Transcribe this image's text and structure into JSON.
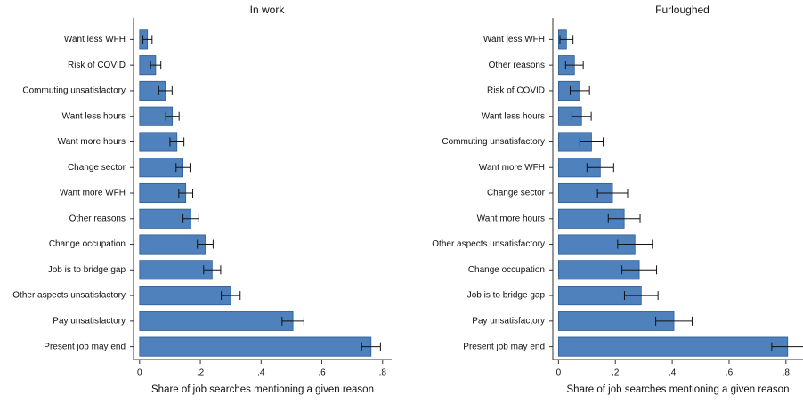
{
  "chart_data": [
    {
      "type": "bar",
      "orientation": "horizontal",
      "title": "In work",
      "xlabel": "Share of job searches mentioning a given reason",
      "categories": [
        "Want less WFH",
        "Risk of COVID",
        "Commuting unsatisfactory",
        "Want less hours",
        "Want more hours",
        "Change sector",
        "Want more WFH",
        "Other reasons",
        "Change occupation",
        "Job is to bridge gap",
        "Other aspects unsatisfactory",
        "Pay unsatisfactory",
        "Present job may end"
      ],
      "values": [
        0.026,
        0.053,
        0.085,
        0.108,
        0.123,
        0.143,
        0.152,
        0.169,
        0.216,
        0.239,
        0.3,
        0.505,
        0.762
      ],
      "errors": [
        0.015,
        0.017,
        0.022,
        0.022,
        0.023,
        0.023,
        0.023,
        0.026,
        0.026,
        0.028,
        0.031,
        0.036,
        0.031
      ],
      "color": "#4f81bd",
      "xlim": [
        -0.02,
        0.83
      ],
      "xticks": [
        0,
        {
          "value": 0.2,
          "label": ".2"
        },
        {
          "value": 0.4,
          "label": ".4"
        },
        {
          "value": 0.6,
          "label": ".6"
        },
        {
          "value": 0.8,
          "label": ".8"
        }
      ]
    },
    {
      "type": "bar",
      "orientation": "horizontal",
      "title": "Furloughed",
      "xlabel": "Share of job searches mentioning a given reason",
      "categories": [
        "Want less WFH",
        "Other reasons",
        "Risk of COVID",
        "Want less hours",
        "Commuting unsatisfactory",
        "Want more WFH",
        "Change sector",
        "Want more hours",
        "Other aspects unsatisfactory",
        "Change occupation",
        "Job is to bridge gap",
        "Pay unsatisfactory",
        "Present job may end"
      ],
      "values": [
        0.028,
        0.056,
        0.075,
        0.081,
        0.116,
        0.147,
        0.19,
        0.231,
        0.269,
        0.284,
        0.291,
        0.406,
        0.806
      ],
      "errors": [
        0.023,
        0.031,
        0.034,
        0.034,
        0.041,
        0.047,
        0.053,
        0.056,
        0.061,
        0.061,
        0.059,
        0.064,
        0.056
      ],
      "color": "#4f81bd",
      "xlim": [
        -0.02,
        0.86
      ],
      "xticks": [
        0,
        {
          "value": 0.2,
          "label": ".2"
        },
        {
          "value": 0.4,
          "label": ".4"
        },
        {
          "value": 0.6,
          "label": ".6"
        },
        {
          "value": 0.8,
          "label": ".8"
        }
      ]
    }
  ]
}
